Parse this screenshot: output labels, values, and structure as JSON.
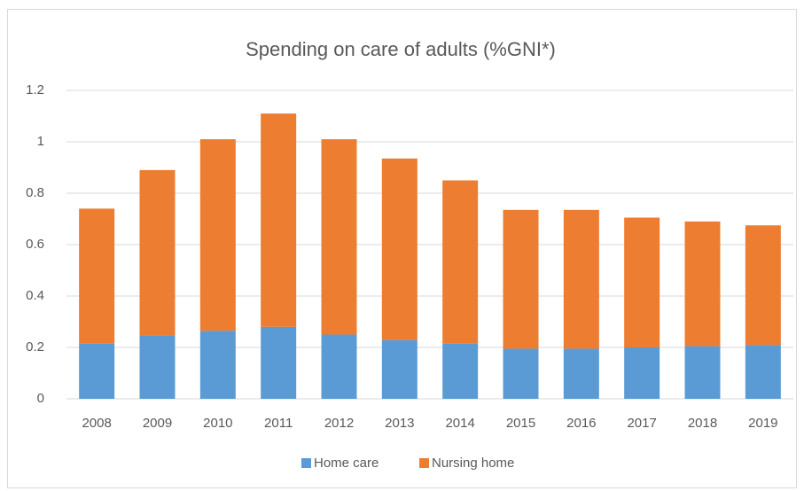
{
  "chart_data": {
    "type": "bar",
    "stacked": true,
    "title": "Spending on care of adults (%GNI*)",
    "categories": [
      "2008",
      "2009",
      "2010",
      "2011",
      "2012",
      "2013",
      "2014",
      "2015",
      "2016",
      "2017",
      "2018",
      "2019"
    ],
    "series": [
      {
        "name": "Home care",
        "color": "#5b9bd5",
        "values": [
          0.215,
          0.245,
          0.265,
          0.28,
          0.25,
          0.23,
          0.215,
          0.195,
          0.195,
          0.2,
          0.205,
          0.21
        ]
      },
      {
        "name": "Nursing home",
        "color": "#ed7d31",
        "values": [
          0.525,
          0.645,
          0.745,
          0.83,
          0.76,
          0.705,
          0.635,
          0.54,
          0.54,
          0.505,
          0.485,
          0.465
        ]
      }
    ],
    "ylim": [
      0,
      1.2
    ],
    "yticks": [
      0,
      0.2,
      0.4,
      0.6,
      0.8,
      1,
      1.2
    ],
    "grid": true,
    "legend": "bottom"
  }
}
